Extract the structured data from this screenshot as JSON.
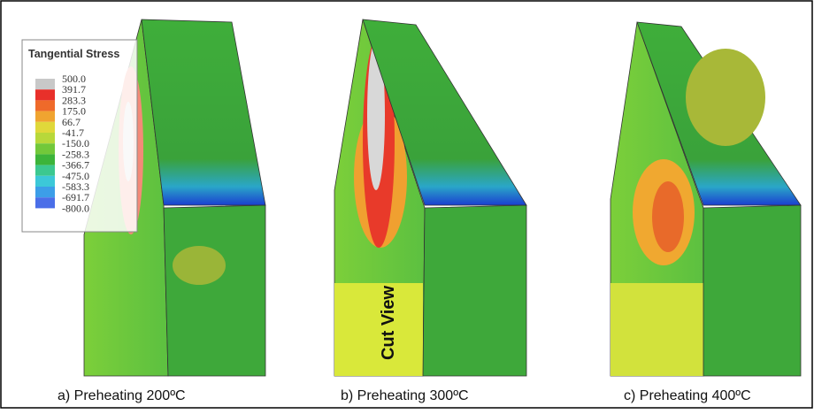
{
  "legend": {
    "title": "Tangential Stress",
    "levels": [
      "500.0",
      "391.7",
      "283.3",
      "175.0",
      "66.7",
      "-41.7",
      "-150.0",
      "-258.3",
      "-366.7",
      "-475.0",
      "-583.3",
      "-691.7",
      "-800.0"
    ]
  },
  "panels": [
    {
      "caption": "a)  Preheating 200ºC"
    },
    {
      "caption": "b)  Preheating 300ºC",
      "annotation": "Cut View"
    },
    {
      "caption": "c)  Preheating 400ºC"
    }
  ]
}
